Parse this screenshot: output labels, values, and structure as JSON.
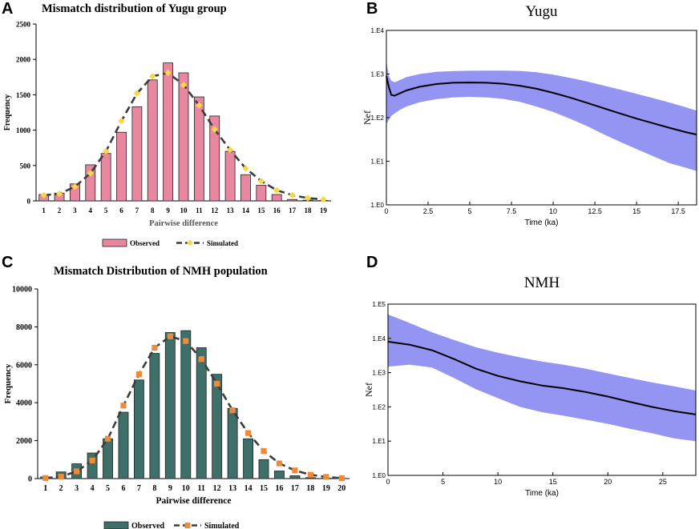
{
  "colors": {
    "pink_bar": "#e8879f",
    "teal_bar": "#3e7069",
    "yellow_marker": "#f5d94a",
    "orange_marker": "#ee8a3a",
    "dash_line": "#3c3c3c",
    "hpd_fill": "#9494f2",
    "median_line": "#000000"
  },
  "chart_data": [
    {
      "panel_letter": "A",
      "type": "bar",
      "title": "Mismatch distribution of Yugu group",
      "xlabel": "Pairwise difference",
      "ylabel": "Frequency",
      "ylim": [
        0,
        2500
      ],
      "yticks": [
        "0",
        "500",
        "1000",
        "1500",
        "2000",
        "2500"
      ],
      "categories": [
        "1",
        "2",
        "3",
        "4",
        "5",
        "6",
        "7",
        "8",
        "9",
        "10",
        "11",
        "12",
        "13",
        "14",
        "15",
        "16",
        "17",
        "18",
        "19"
      ],
      "series": [
        {
          "name": "Observed",
          "kind": "bar",
          "values": [
            90,
            110,
            240,
            510,
            670,
            970,
            1330,
            1710,
            1950,
            1810,
            1470,
            1200,
            700,
            370,
            220,
            90,
            20,
            10,
            5
          ]
        },
        {
          "name": "Simulated",
          "kind": "line",
          "values": [
            80,
            100,
            200,
            390,
            700,
            1130,
            1520,
            1760,
            1810,
            1640,
            1350,
            1010,
            720,
            460,
            280,
            150,
            80,
            40,
            20
          ]
        }
      ],
      "legend": [
        {
          "label": "Observed"
        },
        {
          "label": "Simulated"
        }
      ]
    },
    {
      "panel_letter": "B",
      "type": "area",
      "title": "Yugu",
      "xlabel": "Time (ka)",
      "ylabel": "Nef",
      "x_range": [
        0,
        18.6
      ],
      "xticks": [
        "0",
        "2.5",
        "5",
        "7.5",
        "10",
        "12.5",
        "15",
        "17.5"
      ],
      "ylog_range_exponent": [
        0,
        4
      ],
      "yticks": [
        "1.E0",
        "1.E1",
        "1.E2",
        "1.E3",
        "1.E4"
      ],
      "x": [
        0,
        0.15,
        0.3,
        0.5,
        0.8,
        1.2,
        2,
        3,
        4,
        5,
        6,
        7,
        8,
        9,
        10,
        11,
        12,
        13,
        14,
        15,
        16,
        17,
        18,
        18.6
      ],
      "median": [
        900,
        500,
        330,
        320,
        360,
        420,
        510,
        590,
        630,
        640,
        630,
        600,
        540,
        460,
        370,
        290,
        220,
        165,
        125,
        95,
        74,
        58,
        46,
        41
      ],
      "upper": [
        2000,
        900,
        700,
        650,
        720,
        850,
        1000,
        1120,
        1170,
        1190,
        1200,
        1200,
        1180,
        1100,
        970,
        820,
        680,
        550,
        440,
        350,
        280,
        220,
        170,
        145
      ],
      "lower": [
        70,
        90,
        110,
        125,
        150,
        180,
        225,
        265,
        290,
        300,
        290,
        270,
        230,
        180,
        135,
        95,
        65,
        42,
        28,
        19,
        13,
        9,
        7,
        6
      ]
    },
    {
      "panel_letter": "C",
      "type": "bar",
      "title": "Mismatch Distribution of NMH population",
      "xlabel": "Pairwise difference",
      "ylabel": "Frequency",
      "ylim": [
        0,
        10000
      ],
      "yticks": [
        "0",
        "2000",
        "4000",
        "6000",
        "8000",
        "10000"
      ],
      "categories": [
        "1",
        "2",
        "3",
        "4",
        "5",
        "6",
        "7",
        "8",
        "9",
        "10",
        "11",
        "12",
        "13",
        "14",
        "15",
        "16",
        "17",
        "18",
        "19",
        "20"
      ],
      "series": [
        {
          "name": "Observed",
          "kind": "bar",
          "values": [
            90,
            350,
            780,
            1350,
            2100,
            3500,
            5200,
            6600,
            7700,
            7800,
            6900,
            5500,
            3700,
            2100,
            1000,
            400,
            150,
            50,
            20,
            10
          ]
        },
        {
          "name": "Simulated",
          "kind": "line",
          "values": [
            30,
            100,
            380,
            950,
            2100,
            3850,
            5500,
            6900,
            7500,
            7250,
            6300,
            5000,
            3600,
            2400,
            1450,
            800,
            430,
            200,
            90,
            20
          ]
        }
      ],
      "legend": [
        {
          "label": "Observed"
        },
        {
          "label": "Simulated"
        }
      ]
    },
    {
      "panel_letter": "D",
      "type": "area",
      "title": "NMH",
      "xlabel": "Time (ka)",
      "ylabel": "Nef",
      "x_range": [
        0,
        28
      ],
      "xticks": [
        "0",
        "5",
        "10",
        "15",
        "20",
        "25"
      ],
      "ylog_range_exponent": [
        0,
        5
      ],
      "yticks": [
        "1.E0",
        "1.E1",
        "1.E2",
        "1.E3",
        "1.E4",
        "1.E5"
      ],
      "x": [
        0,
        2,
        4,
        6,
        8,
        10,
        12,
        14,
        16,
        18,
        20,
        22,
        24,
        26,
        28
      ],
      "median": [
        8000,
        6500,
        4500,
        2500,
        1300,
        800,
        560,
        420,
        350,
        270,
        200,
        140,
        100,
        75,
        60
      ],
      "upper": [
        50000,
        28000,
        15000,
        9000,
        5500,
        3800,
        2800,
        2100,
        1700,
        1300,
        950,
        700,
        520,
        400,
        300
      ],
      "lower": [
        1500,
        1700,
        1400,
        700,
        330,
        180,
        100,
        70,
        55,
        42,
        32,
        23,
        17,
        12,
        10
      ]
    }
  ]
}
